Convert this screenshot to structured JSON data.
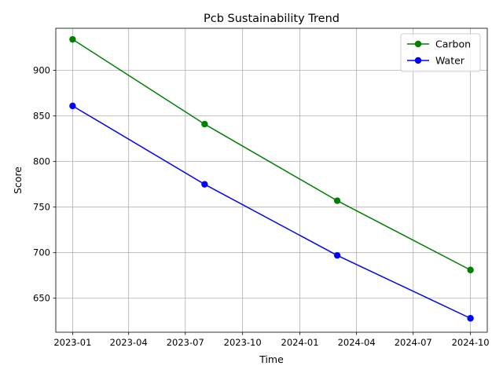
{
  "chart_data": {
    "type": "line",
    "title": "Pcb Sustainability Trend",
    "xlabel": "Time",
    "ylabel": "Score",
    "x": [
      "2023-01-01",
      "2023-08-01",
      "2024-03-01",
      "2024-10-01"
    ],
    "series": [
      {
        "name": "Carbon",
        "color": "#008000",
        "values": [
          934,
          841,
          757,
          681
        ]
      },
      {
        "name": "Water",
        "color": "#0000ff",
        "values": [
          861,
          775,
          697,
          628
        ]
      }
    ],
    "x_ticks": [
      "2023-01",
      "2023-04",
      "2023-07",
      "2023-10",
      "2024-01",
      "2024-04",
      "2024-07",
      "2024-10"
    ],
    "y_ticks": [
      650,
      700,
      750,
      800,
      850,
      900
    ],
    "xlim": [
      "2022-12-05",
      "2024-10-28"
    ],
    "ylim": [
      612.7,
      946.2
    ],
    "grid": true,
    "legend": "top-right",
    "marker": "circle"
  }
}
